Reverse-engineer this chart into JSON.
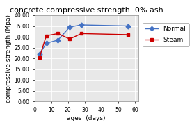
{
  "title": "concrete compressive strength  0% ash",
  "xlabel": "ages  (days)",
  "ylabel": "compressive strength (Mpa)",
  "normal_x": [
    3,
    7,
    14,
    21,
    28,
    56
  ],
  "normal_y": [
    22.0,
    27.0,
    28.5,
    34.5,
    35.5,
    35.0
  ],
  "steam_x": [
    3,
    7,
    14,
    21,
    28,
    56
  ],
  "steam_y": [
    20.5,
    30.5,
    31.5,
    29.0,
    31.5,
    31.0
  ],
  "normal_color": "#4472C4",
  "steam_color": "#CC0000",
  "xlim": [
    0,
    62
  ],
  "ylim": [
    0.0,
    40.0
  ],
  "xticks": [
    0,
    10,
    20,
    30,
    40,
    50,
    60
  ],
  "yticks": [
    0.0,
    5.0,
    10.0,
    15.0,
    20.0,
    25.0,
    30.0,
    35.0,
    40.0
  ],
  "bg_color": "#FFFFFF",
  "plot_bg_color": "#E8E8E8",
  "grid_color": "#FFFFFF",
  "legend_normal": "Normal",
  "legend_steam": "Steam",
  "title_fontsize": 8,
  "label_fontsize": 6.5,
  "tick_fontsize": 5.5,
  "legend_fontsize": 6.5
}
